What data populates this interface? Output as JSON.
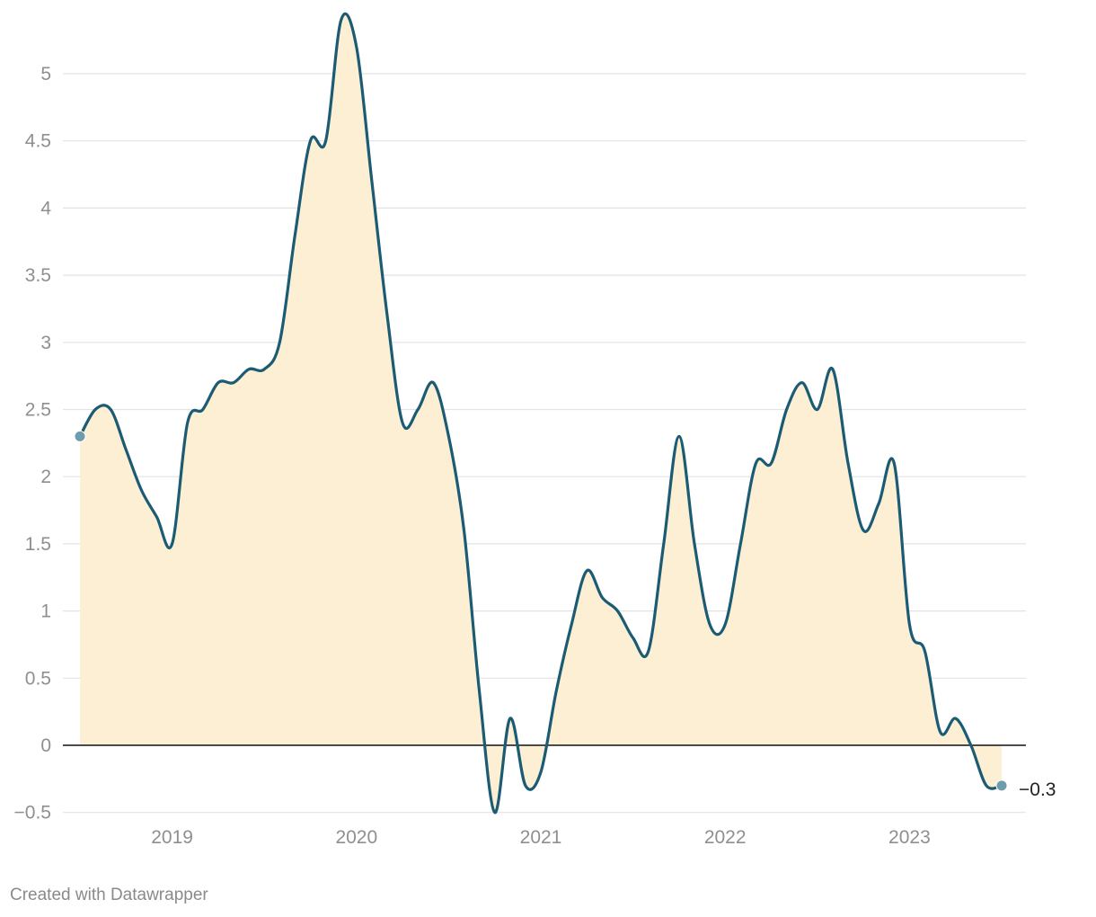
{
  "footer": {
    "credit": "Created with Datawrapper"
  },
  "colors": {
    "line": "#1b5b73",
    "area": "#fdefd3",
    "grid": "#e3e3e3",
    "zero_line": "#111111",
    "endpoint": "#6f9cad"
  },
  "chart_data": {
    "type": "area",
    "title": "",
    "xlabel": "",
    "ylabel": "",
    "x_tick_labels": [
      "2019",
      "2020",
      "2021",
      "2022",
      "2023"
    ],
    "y_tick_labels": [
      "−0.5",
      "0",
      "0.5",
      "1",
      "1.5",
      "2",
      "2.5",
      "3",
      "3.5",
      "4",
      "4.5",
      "5"
    ],
    "y_ticks": [
      -0.5,
      0,
      0.5,
      1,
      1.5,
      2,
      2.5,
      3,
      3.5,
      4,
      4.5,
      5
    ],
    "ylim": [
      -0.5,
      5.45
    ],
    "xlim": [
      "2018-07",
      "2023-07"
    ],
    "grid": true,
    "end_label": "−0.3",
    "x": [
      "2018-07",
      "2018-08",
      "2018-09",
      "2018-10",
      "2018-11",
      "2018-12",
      "2019-01",
      "2019-02",
      "2019-03",
      "2019-04",
      "2019-05",
      "2019-06",
      "2019-07",
      "2019-08",
      "2019-09",
      "2019-10",
      "2019-11",
      "2019-12",
      "2020-01",
      "2020-02",
      "2020-03",
      "2020-04",
      "2020-05",
      "2020-06",
      "2020-07",
      "2020-08",
      "2020-09",
      "2020-10",
      "2020-11",
      "2020-12",
      "2021-01",
      "2021-02",
      "2021-03",
      "2021-04",
      "2021-05",
      "2021-06",
      "2021-07",
      "2021-08",
      "2021-09",
      "2021-10",
      "2021-11",
      "2021-12",
      "2022-01",
      "2022-02",
      "2022-03",
      "2022-04",
      "2022-05",
      "2022-06",
      "2022-07",
      "2022-08",
      "2022-09",
      "2022-10",
      "2022-11",
      "2022-12",
      "2023-01",
      "2023-02",
      "2023-03",
      "2023-04",
      "2023-05",
      "2023-06",
      "2023-07"
    ],
    "values": [
      2.3,
      2.5,
      2.5,
      2.2,
      1.9,
      1.7,
      1.5,
      2.4,
      2.5,
      2.7,
      2.7,
      2.8,
      2.8,
      3.0,
      3.8,
      4.5,
      4.5,
      5.4,
      5.2,
      4.2,
      3.2,
      2.4,
      2.5,
      2.7,
      2.3,
      1.6,
      0.4,
      -0.5,
      0.2,
      -0.3,
      -0.2,
      0.4,
      0.9,
      1.3,
      1.1,
      1.0,
      0.8,
      0.7,
      1.5,
      2.3,
      1.5,
      0.9,
      0.9,
      1.5,
      2.1,
      2.1,
      2.5,
      2.7,
      2.5,
      2.8,
      2.1,
      1.6,
      1.8,
      2.1,
      0.9,
      0.7,
      0.1,
      0.2,
      0.0,
      -0.3,
      -0.3
    ]
  }
}
